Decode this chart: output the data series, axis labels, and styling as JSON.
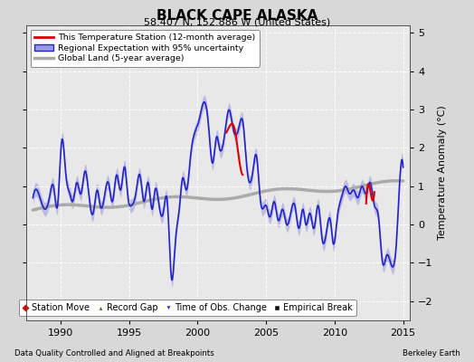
{
  "title": "BLACK CAPE ALASKA",
  "subtitle": "58.407 N, 152.886 W (United States)",
  "ylabel": "Temperature Anomaly (°C)",
  "footer_left": "Data Quality Controlled and Aligned at Breakpoints",
  "footer_right": "Berkeley Earth",
  "xlim": [
    1987.5,
    2015.5
  ],
  "ylim": [
    -2.5,
    5.2
  ],
  "yticks": [
    -2,
    -1,
    0,
    1,
    2,
    3,
    4,
    5
  ],
  "xticks": [
    1990,
    1995,
    2000,
    2005,
    2010,
    2015
  ],
  "bg_color": "#d8d8d8",
  "plot_bg_color": "#e8e8e8",
  "regional_color": "#2222cc",
  "regional_fill_color": "#9999dd",
  "station_color": "#dd0000",
  "global_color": "#aaaaaa",
  "global_lw": 2.5,
  "grid_color": "#ffffff",
  "legend_box_color": "#ffffff"
}
